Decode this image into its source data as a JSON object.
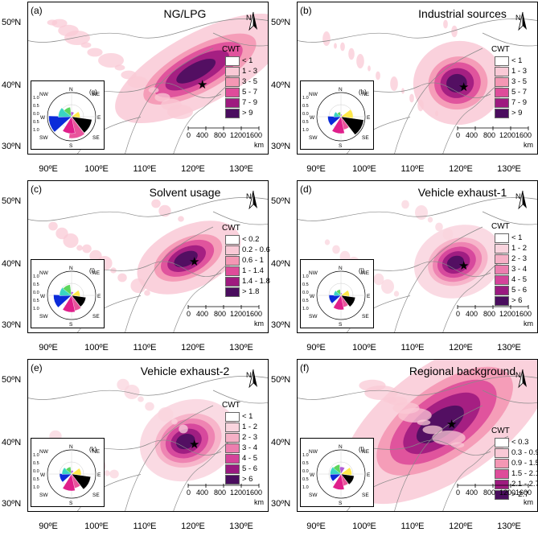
{
  "panels": [
    {
      "label": "(a)",
      "title": "NG/LPG",
      "rose_label": "(g)",
      "legend": [
        "< 1",
        "1 - 3",
        "3 - 5",
        "5 - 7",
        "7 - 9",
        "> 9"
      ]
    },
    {
      "label": "(b)",
      "title": "Industrial sources",
      "rose_label": "(h)",
      "legend": [
        "< 1",
        "1 - 3",
        "3 - 5",
        "5 - 7",
        "7 - 9",
        "> 9"
      ]
    },
    {
      "label": "(c)",
      "title": "Solvent usage",
      "rose_label": "(i)",
      "legend": [
        "< 0.2",
        "0.2 - 0.6",
        "0.6 - 1",
        "1 - 1.4",
        "1.4 - 1.8",
        "> 1.8"
      ]
    },
    {
      "label": "(d)",
      "title": "Vehicle exhaust-1",
      "rose_label": "(j)",
      "legend": [
        "< 1",
        "1 - 2",
        "2 - 3",
        "3 - 4",
        "4 - 5",
        "5 - 6",
        "> 6"
      ]
    },
    {
      "label": "(e)",
      "title": "Vehicle exhaust-2",
      "rose_label": "(k)",
      "legend": [
        "< 1",
        "1 - 2",
        "2 - 3",
        "3 - 4",
        "4 - 5",
        "5 - 6",
        "> 6"
      ]
    },
    {
      "label": "(f)",
      "title": "Regional background",
      "rose_label": "(l)",
      "legend": [
        "< 0.3",
        "0.3 - 0.9",
        "0.9 - 1.5",
        "1.5 - 2.1",
        "2.1 - 2.7",
        "> 2.7"
      ]
    }
  ],
  "legend_title": "CWT",
  "lat_labels": [
    "50ºN",
    "40ºN",
    "30ºN"
  ],
  "lon_labels": [
    "90ºE",
    "100ºE",
    "110ºE",
    "120ºE",
    "130ºE"
  ],
  "scale_labels": [
    "0",
    "400",
    "800",
    "12001600"
  ],
  "scale_unit": "km",
  "north_label": "N",
  "rose_dirs": {
    "N": "N",
    "NE": "NE",
    "E": "E",
    "SE": "SE",
    "S": "S",
    "SW": "SW",
    "W": "W",
    "NW": "NW"
  },
  "rose_ticks": [
    "1.0",
    "0.5",
    "0.0",
    "0.5",
    "1.0"
  ],
  "colors": {
    "levels6": [
      "#ffffff",
      "#f9c9d6",
      "#f497b4",
      "#de4c9a",
      "#9e1a7f",
      "#4a0d5e"
    ],
    "levels7": [
      "#ffffff",
      "#f9d4de",
      "#f6b0c6",
      "#ec7eaf",
      "#d4439a",
      "#9a1a80",
      "#4a0d5e"
    ],
    "rose": [
      "#ffe84a",
      "#000000",
      "#e9549c",
      "#e01f8b",
      "#0b2bd9",
      "#39d6c2",
      "#5cd65c",
      "#b25cd6"
    ]
  }
}
